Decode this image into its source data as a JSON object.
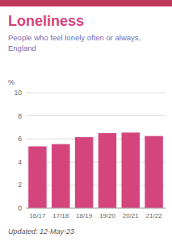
{
  "chart_data": {
    "type": "bar",
    "title": "Loneliness",
    "subtitle": "People who feel lonely often or always,\nEngland",
    "ylabel": "%",
    "categories": [
      "16/17",
      "17/18",
      "18/19",
      "19/20",
      "20/21",
      "21/22"
    ],
    "values": [
      5.35,
      5.55,
      6.15,
      6.5,
      6.55,
      6.25
    ],
    "color": "#d4457e",
    "ylim": [
      0,
      10
    ],
    "yticks": [
      0,
      2,
      4,
      6,
      8,
      10
    ],
    "grid": true,
    "annotations": [
      "Updated: 12-May-23"
    ]
  }
}
